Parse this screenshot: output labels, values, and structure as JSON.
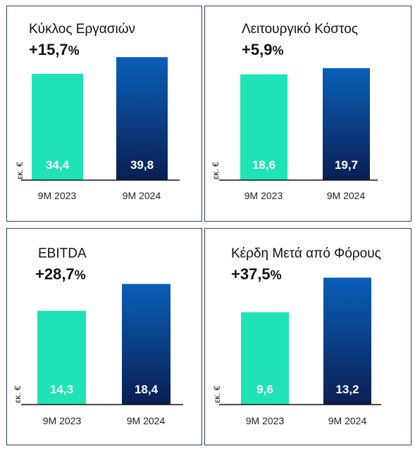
{
  "colors": {
    "bar_2023": "#1fe3b6",
    "bar_2024_top": "#0a5fb8",
    "bar_2024_bottom": "#0a1f52",
    "border": "#2a3d6b",
    "value_label": "#ffffff"
  },
  "chart_data": [
    {
      "type": "bar",
      "title": "Κύκλος Εργασιών",
      "change": "+15,7",
      "change_unit": "%",
      "ylabel": "εκ. €",
      "categories": [
        "9M 2023",
        "9M 2024"
      ],
      "values": [
        34.4,
        39.8
      ],
      "value_labels": [
        "34,4",
        "39,8"
      ],
      "ylim": [
        0,
        46
      ]
    },
    {
      "type": "bar",
      "title": "Λειτουργικό Κόστος",
      "change": "+5,9",
      "change_unit": "%",
      "ylabel": "εκ. €",
      "categories": [
        "9M 2023",
        "9M 2024"
      ],
      "values": [
        18.6,
        19.7
      ],
      "value_labels": [
        "18,6",
        "19,7"
      ],
      "ylim": [
        0,
        25
      ]
    },
    {
      "type": "bar",
      "title": "EBITDA",
      "change": "+28,7",
      "change_unit": "%",
      "ylabel": "εκ. €",
      "categories": [
        "9M 2023",
        "9M 2024"
      ],
      "values": [
        14.3,
        18.4
      ],
      "value_labels": [
        "14,3",
        "18,4"
      ],
      "ylim": [
        0,
        22
      ]
    },
    {
      "type": "bar",
      "title": "Κέρδη Μετά από Φόρους",
      "change": "+37,5",
      "change_unit": "%",
      "ylabel": "εκ. €",
      "categories": [
        "9M 2023",
        "9M 2024"
      ],
      "values": [
        9.6,
        13.2
      ],
      "value_labels": [
        "9,6",
        "13,2"
      ],
      "ylim": [
        0,
        15
      ]
    }
  ]
}
